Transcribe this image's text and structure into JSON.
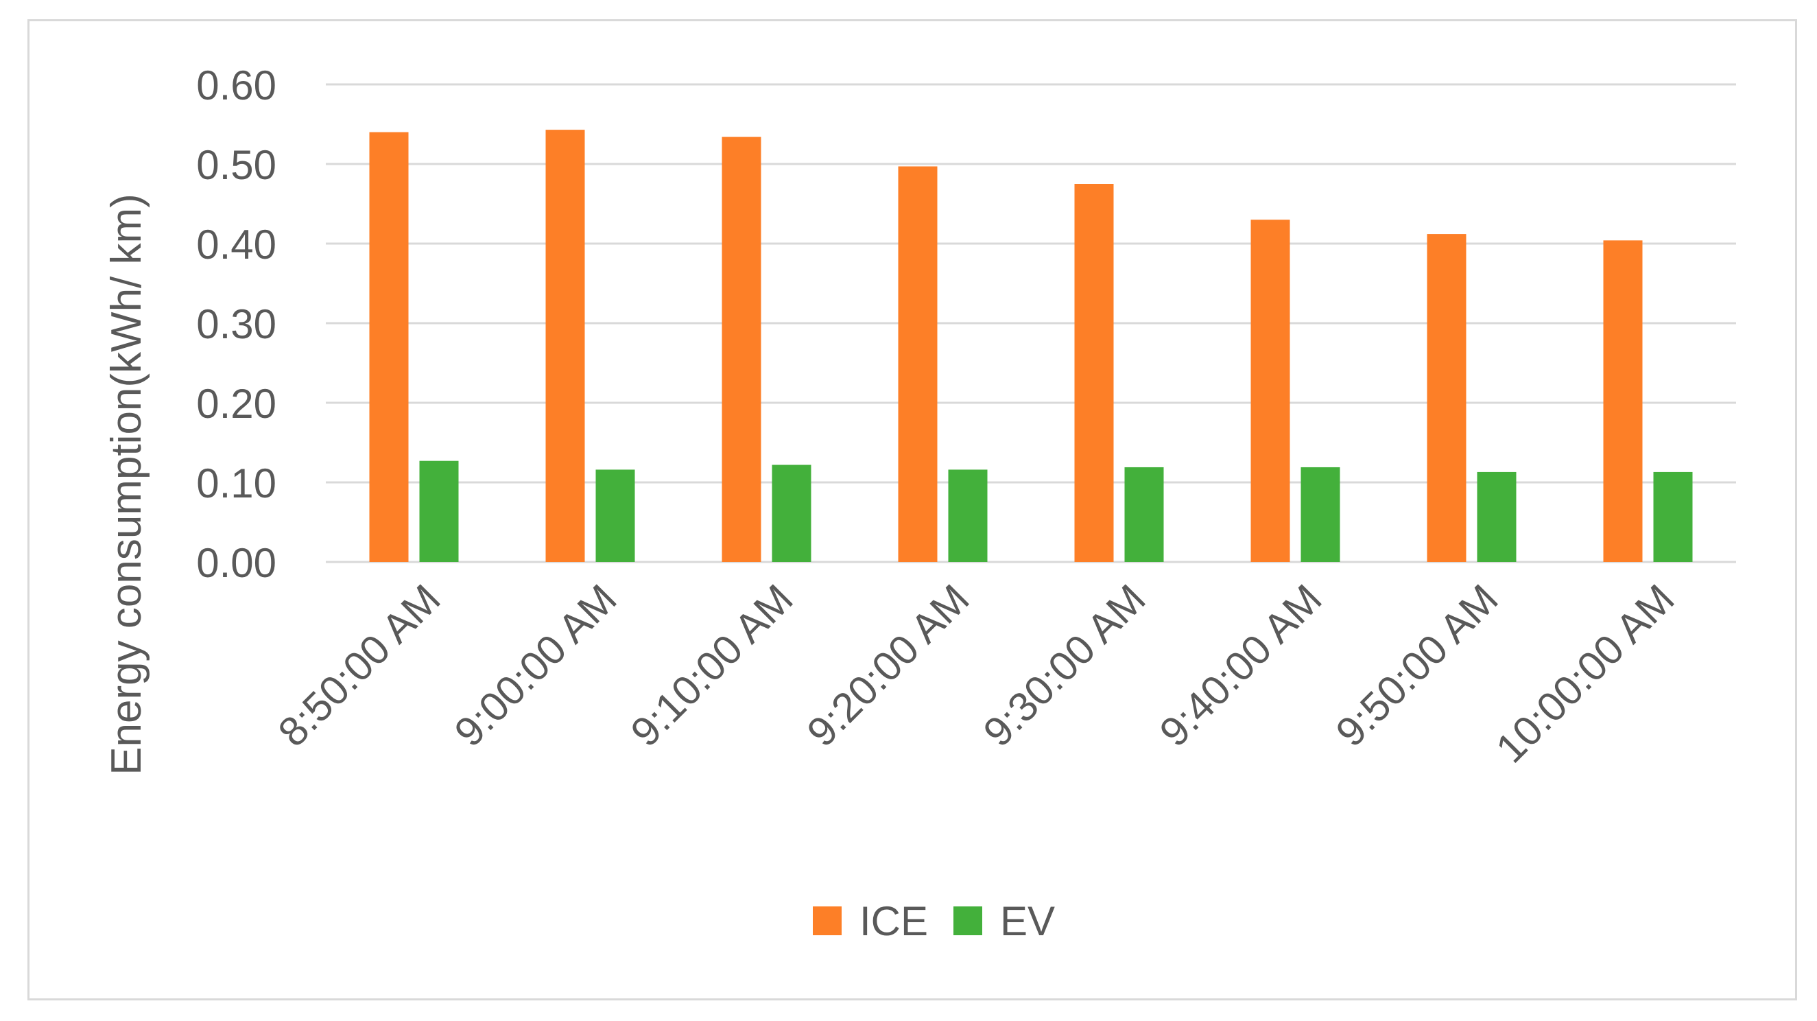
{
  "chart_data": {
    "type": "bar",
    "title": "",
    "xlabel": "",
    "ylabel": "Energy consumption(kWh/ km)",
    "ylim": [
      0,
      0.6
    ],
    "yticks": [
      "0.00",
      "0.10",
      "0.20",
      "0.30",
      "0.40",
      "0.50",
      "0.60"
    ],
    "grid": true,
    "legend_position": "bottom",
    "categories": [
      "8:50:00 AM",
      "9:00:00 AM",
      "9:10:00 AM",
      "9:20:00 AM",
      "9:30:00 AM",
      "9:40:00 AM",
      "9:50:00 AM",
      "10:00:00 AM"
    ],
    "series": [
      {
        "name": "ICE",
        "color": "#fd7f27",
        "values": [
          0.54,
          0.543,
          0.534,
          0.497,
          0.475,
          0.43,
          0.412,
          0.404
        ]
      },
      {
        "name": "EV",
        "color": "#43b03b",
        "values": [
          0.127,
          0.116,
          0.122,
          0.116,
          0.119,
          0.119,
          0.113,
          0.113
        ]
      }
    ]
  }
}
